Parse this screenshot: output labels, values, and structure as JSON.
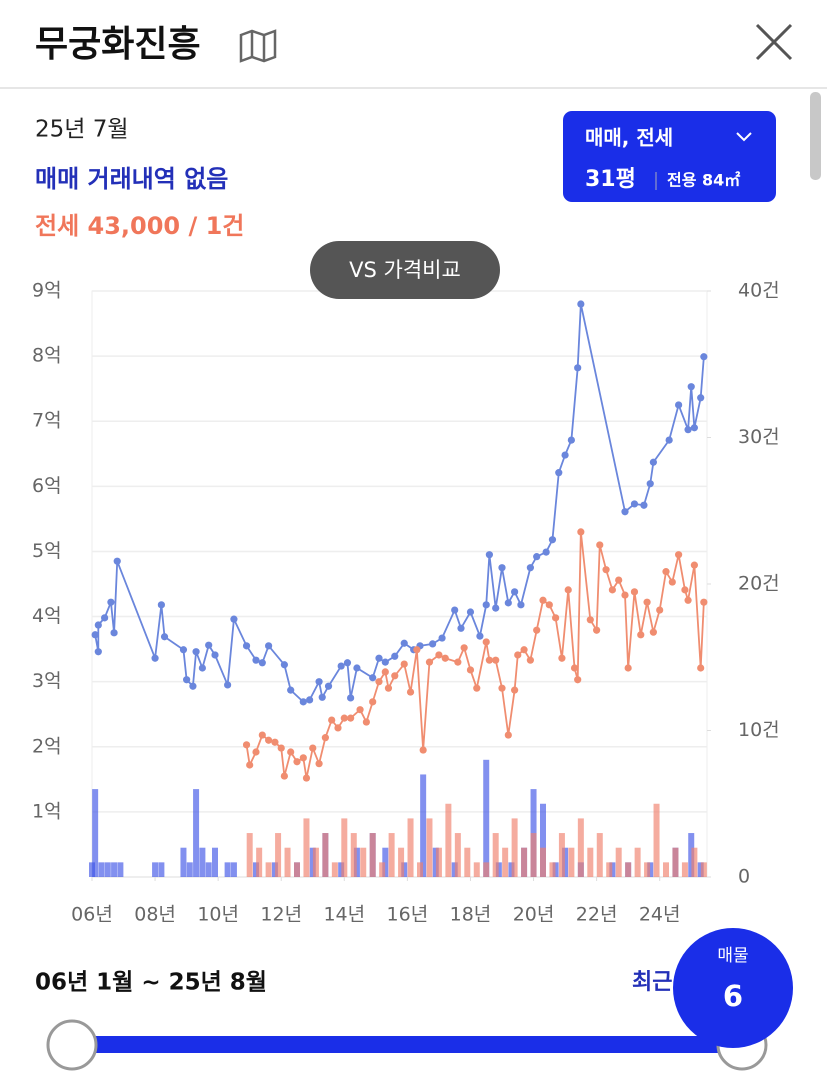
{
  "header": {
    "title": "무궁화진흥"
  },
  "info": {
    "month": "25년 7월",
    "sale": "매매 거래내역 없음",
    "jeonse": "전세 43,000 / 1건"
  },
  "filter": {
    "type": "매매, 전세",
    "size": "31평",
    "area": "전용 84㎡"
  },
  "compare_button": "VS 가격비교",
  "chart_data": {
    "type": "line",
    "xlim": [
      2006,
      2025.5
    ],
    "xticks": [
      {
        "value": 2006,
        "label": "06년"
      },
      {
        "value": 2008,
        "label": "08년"
      },
      {
        "value": 2010,
        "label": "10년"
      },
      {
        "value": 2012,
        "label": "12년"
      },
      {
        "value": 2014,
        "label": "14년"
      },
      {
        "value": 2016,
        "label": "16년"
      },
      {
        "value": 2018,
        "label": "18년"
      },
      {
        "value": 2020,
        "label": "20년"
      },
      {
        "value": 2022,
        "label": "22년"
      },
      {
        "value": 2024,
        "label": "24년"
      }
    ],
    "ylim": [
      0,
      9
    ],
    "yticks": [
      {
        "value": 1,
        "label": "1억"
      },
      {
        "value": 2,
        "label": "2억"
      },
      {
        "value": 3,
        "label": "3억"
      },
      {
        "value": 4,
        "label": "4억"
      },
      {
        "value": 5,
        "label": "5억"
      },
      {
        "value": 6,
        "label": "6억"
      },
      {
        "value": 7,
        "label": "7억"
      },
      {
        "value": 8,
        "label": "8억"
      },
      {
        "value": 9,
        "label": "9억"
      }
    ],
    "y2lim": [
      0,
      40
    ],
    "y2ticks": [
      0,
      {
        "value": 10,
        "label": "10건"
      },
      {
        "value": 20,
        "label": "20건"
      },
      {
        "value": 30,
        "label": "30건"
      },
      {
        "value": 40,
        "label": "40건"
      }
    ],
    "grid": true,
    "series": [
      {
        "type": "bar",
        "axis": "y2",
        "color": "#3f55e6",
        "x": [
          2006.0,
          2006.1,
          2006.3,
          2006.5,
          2006.7,
          2006.9,
          2008.0,
          2008.2,
          2008.9,
          2009.1,
          2009.3,
          2009.5,
          2009.7,
          2009.9,
          2010.3,
          2010.5,
          2011.2,
          2011.8,
          2012.5,
          2013.0,
          2013.4,
          2013.9,
          2014.4,
          2014.9,
          2015.3,
          2015.9,
          2016.5,
          2016.9,
          2017.5,
          2018.5,
          2018.9,
          2019.3,
          2019.7,
          2020.0,
          2020.3,
          2020.7,
          2021.0,
          2021.5,
          2022.5,
          2023.0,
          2023.7,
          2024.5,
          2025.0,
          2025.3
        ],
        "values": [
          1,
          6,
          1,
          1,
          1,
          1,
          1,
          1,
          2,
          1,
          6,
          2,
          1,
          2,
          1,
          1,
          1,
          1,
          1,
          2,
          3,
          1,
          2,
          3,
          2,
          1,
          7,
          2,
          1,
          8,
          1,
          1,
          2,
          6,
          5,
          1,
          2,
          1,
          1,
          1,
          1,
          2,
          3,
          1
        ]
      },
      {
        "type": "bar",
        "axis": "y2",
        "color": "#f0806c",
        "x": [
          2011.0,
          2011.3,
          2011.6,
          2011.9,
          2012.2,
          2012.5,
          2012.8,
          2013.1,
          2013.4,
          2013.7,
          2014.0,
          2014.3,
          2014.6,
          2014.9,
          2015.2,
          2015.5,
          2015.8,
          2016.1,
          2016.4,
          2016.7,
          2017.0,
          2017.3,
          2017.6,
          2017.9,
          2018.2,
          2018.5,
          2018.8,
          2019.1,
          2019.4,
          2019.7,
          2020.0,
          2020.3,
          2020.6,
          2020.9,
          2021.2,
          2021.5,
          2021.8,
          2022.1,
          2022.4,
          2022.7,
          2023.0,
          2023.3,
          2023.6,
          2023.9,
          2024.2,
          2024.5,
          2024.8,
          2025.1,
          2025.4
        ],
        "values": [
          3,
          2,
          1,
          3,
          2,
          1,
          4,
          2,
          3,
          1,
          4,
          3,
          2,
          3,
          1,
          3,
          2,
          4,
          1,
          4,
          2,
          5,
          3,
          2,
          1,
          1,
          3,
          2,
          4,
          2,
          3,
          2,
          1,
          3,
          2,
          4,
          2,
          3,
          1,
          2,
          1,
          2,
          1,
          5,
          1,
          2,
          1,
          2,
          1
        ]
      },
      {
        "color": "#6a86dc",
        "x": [
          2006.1,
          2006.2,
          2006.2,
          2006.4,
          2006.6,
          2006.7,
          2006.8,
          2008.0,
          2008.2,
          2008.3,
          2008.9,
          2009.0,
          2009.2,
          2009.3,
          2009.5,
          2009.7,
          2009.9,
          2010.3,
          2010.5,
          2010.9,
          2011.2,
          2011.4,
          2011.6,
          2012.1,
          2012.3,
          2012.7,
          2012.9,
          2013.2,
          2013.3,
          2013.5,
          2013.9,
          2014.1,
          2014.2,
          2014.4,
          2014.9,
          2015.1,
          2015.3,
          2015.6,
          2015.9,
          2016.2,
          2016.4,
          2016.8,
          2017.1,
          2017.5,
          2017.7,
          2018.0,
          2018.3,
          2018.5,
          2018.6,
          2018.8,
          2019.0,
          2019.2,
          2019.4,
          2019.6,
          2019.9,
          2020.1,
          2020.4,
          2020.6,
          2020.8,
          2021.0,
          2021.2,
          2021.4,
          2021.5,
          2022.9,
          2023.2,
          2023.5,
          2023.7,
          2023.8,
          2024.3,
          2024.6,
          2024.9,
          2025.0,
          2025.1,
          2025.3,
          2025.4
        ],
        "values": [
          3.72,
          3.46,
          3.87,
          3.98,
          4.22,
          3.75,
          4.85,
          3.36,
          4.18,
          3.69,
          3.49,
          3.03,
          2.93,
          3.46,
          3.21,
          3.56,
          3.41,
          2.95,
          3.96,
          3.55,
          3.33,
          3.29,
          3.55,
          3.26,
          2.87,
          2.69,
          2.72,
          3.0,
          2.76,
          2.93,
          3.24,
          3.29,
          2.75,
          3.21,
          3.06,
          3.36,
          3.3,
          3.39,
          3.59,
          3.49,
          3.55,
          3.58,
          3.67,
          4.1,
          3.82,
          4.07,
          3.7,
          4.18,
          4.95,
          4.13,
          4.75,
          4.21,
          4.38,
          4.18,
          4.75,
          4.92,
          4.99,
          5.18,
          6.21,
          6.48,
          6.71,
          7.82,
          8.8,
          5.61,
          5.73,
          5.71,
          6.04,
          6.37,
          6.71,
          7.25,
          6.87,
          7.53,
          6.9,
          7.36,
          7.99
        ]
      },
      {
        "color": "#f08d70",
        "x": [
          2010.9,
          2011.0,
          2011.2,
          2011.4,
          2011.6,
          2011.8,
          2012.0,
          2012.1,
          2012.3,
          2012.5,
          2012.7,
          2012.8,
          2013.0,
          2013.2,
          2013.4,
          2013.6,
          2013.8,
          2014.0,
          2014.2,
          2014.5,
          2014.7,
          2014.9,
          2015.1,
          2015.3,
          2015.4,
          2015.6,
          2015.9,
          2016.1,
          2016.3,
          2016.5,
          2016.7,
          2017.0,
          2017.2,
          2017.6,
          2017.8,
          2018.0,
          2018.2,
          2018.5,
          2018.6,
          2018.8,
          2019.0,
          2019.2,
          2019.4,
          2019.5,
          2019.7,
          2019.9,
          2020.1,
          2020.3,
          2020.5,
          2020.7,
          2020.9,
          2021.1,
          2021.3,
          2021.4,
          2021.5,
          2021.8,
          2022.0,
          2022.1,
          2022.3,
          2022.5,
          2022.7,
          2022.9,
          2023.0,
          2023.2,
          2023.4,
          2023.6,
          2023.8,
          2024.0,
          2024.2,
          2024.4,
          2024.6,
          2024.8,
          2024.9,
          2025.1,
          2025.3,
          2025.4
        ],
        "values": [
          2.03,
          1.72,
          1.92,
          2.18,
          2.1,
          2.07,
          1.98,
          1.55,
          1.92,
          1.77,
          1.83,
          1.52,
          1.98,
          1.74,
          2.14,
          2.41,
          2.29,
          2.44,
          2.44,
          2.57,
          2.38,
          2.69,
          3.0,
          3.15,
          2.9,
          3.09,
          3.27,
          2.84,
          3.49,
          1.95,
          3.3,
          3.41,
          3.36,
          3.3,
          3.52,
          3.18,
          2.9,
          3.61,
          3.33,
          3.33,
          2.9,
          2.18,
          2.87,
          3.41,
          3.49,
          3.33,
          3.79,
          4.25,
          4.18,
          3.98,
          3.36,
          4.41,
          3.21,
          3.03,
          5.3,
          3.95,
          3.79,
          5.1,
          4.72,
          4.41,
          4.56,
          4.33,
          3.21,
          4.38,
          3.72,
          4.22,
          3.76,
          4.1,
          4.69,
          4.53,
          4.95,
          4.41,
          4.25,
          4.79,
          3.21,
          4.22
        ]
      }
    ]
  },
  "range": {
    "period": "06년 1월 ~ 25년 8월",
    "recent": "최근"
  },
  "listing": {
    "label": "매물",
    "count": "6"
  }
}
